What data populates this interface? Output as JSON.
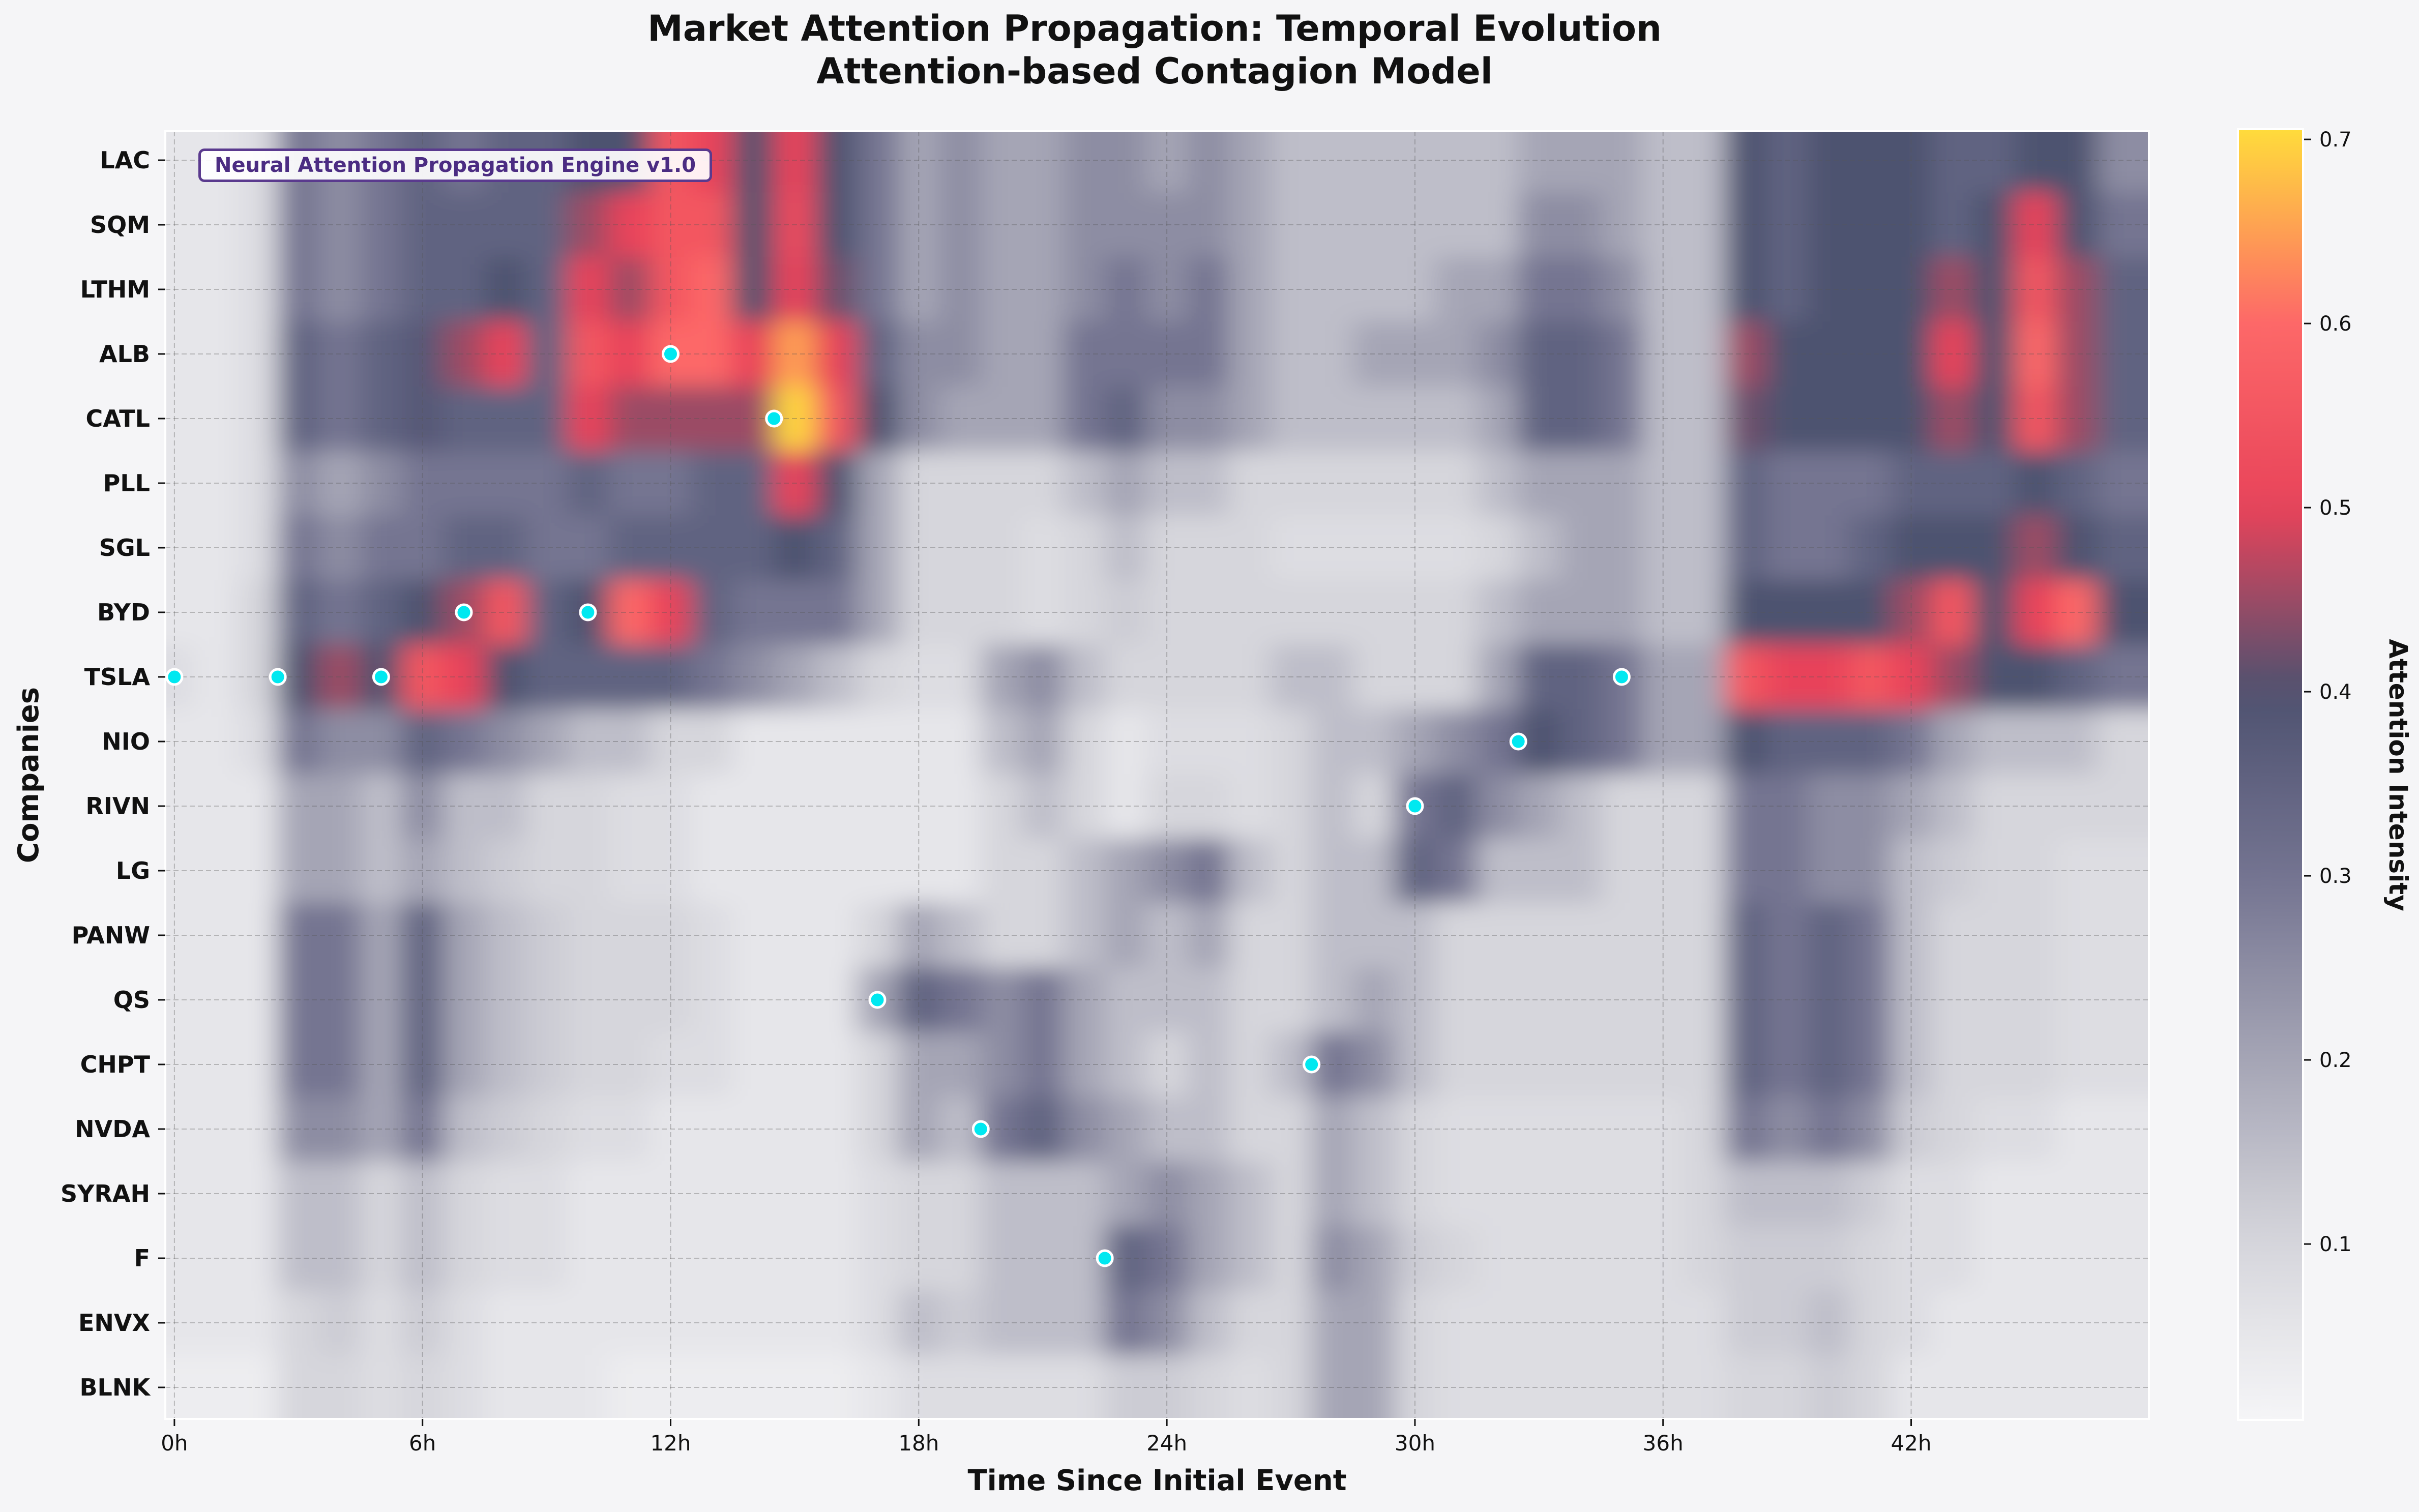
{
  "title_line1": "Market Attention Propagation: Temporal Evolution",
  "title_line2": "Attention-based Contagion Model",
  "annotation": "Neural Attention Propagation Engine v1.0",
  "chart_data": {
    "type": "heatmap",
    "xlabel": "Time Since Initial Event",
    "ylabel": "Companies",
    "colorbar_label": "Attention Intensity",
    "colorbar_ticks": [
      "0.1",
      "0.2",
      "0.3",
      "0.4",
      "0.5",
      "0.6",
      "0.7"
    ],
    "colorbar_range": [
      0.005,
      0.705
    ],
    "colormap": [
      "#f5f5f7",
      "#d6d6dc",
      "#a5a5b5",
      "#747491",
      "#4e5270",
      "#e8435a",
      "#fd6868",
      "#ffdb3c"
    ],
    "x_ticks": [
      "0h",
      "6h",
      "12h",
      "18h",
      "24h",
      "30h",
      "36h",
      "42h"
    ],
    "x_tick_values": [
      0,
      6,
      12,
      18,
      24,
      30,
      36,
      42
    ],
    "xlim": [
      -0.22,
      47.75
    ],
    "grid": true,
    "hours": [
      0,
      1,
      2,
      3,
      4,
      5,
      6,
      7,
      8,
      9,
      10,
      11,
      12,
      13,
      14,
      15,
      16,
      17,
      18,
      19,
      20,
      21,
      22,
      23,
      24,
      25,
      26,
      27,
      28,
      29,
      30,
      31,
      32,
      33,
      34,
      35,
      36,
      37,
      38,
      39,
      40,
      41,
      42,
      43,
      44,
      45,
      46,
      47
    ],
    "companies": [
      "LAC",
      "SQM",
      "LTHM",
      "ALB",
      "CATL",
      "PLL",
      "SGL",
      "BYD",
      "TSLA",
      "NIO",
      "RIVN",
      "LG",
      "PANW",
      "QS",
      "CHPT",
      "NVDA",
      "SYRAH",
      "F",
      "ENVX",
      "BLNK"
    ],
    "values": [
      [
        0.05,
        0.05,
        0.08,
        0.3,
        0.25,
        0.3,
        0.35,
        0.3,
        0.35,
        0.35,
        0.4,
        0.4,
        0.55,
        0.5,
        0.4,
        0.5,
        0.4,
        0.3,
        0.2,
        0.25,
        0.2,
        0.2,
        0.25,
        0.25,
        0.2,
        0.25,
        0.2,
        0.15,
        0.15,
        0.15,
        0.15,
        0.15,
        0.15,
        0.2,
        0.2,
        0.2,
        0.15,
        0.15,
        0.4,
        0.35,
        0.4,
        0.4,
        0.4,
        0.35,
        0.35,
        0.4,
        0.4,
        0.25
      ],
      [
        0.05,
        0.05,
        0.08,
        0.3,
        0.25,
        0.3,
        0.35,
        0.35,
        0.35,
        0.35,
        0.45,
        0.5,
        0.55,
        0.55,
        0.4,
        0.52,
        0.4,
        0.3,
        0.2,
        0.25,
        0.2,
        0.2,
        0.25,
        0.25,
        0.25,
        0.25,
        0.2,
        0.15,
        0.15,
        0.15,
        0.15,
        0.15,
        0.15,
        0.25,
        0.25,
        0.2,
        0.15,
        0.15,
        0.4,
        0.35,
        0.4,
        0.4,
        0.4,
        0.35,
        0.4,
        0.5,
        0.4,
        0.3
      ],
      [
        0.05,
        0.05,
        0.08,
        0.3,
        0.25,
        0.3,
        0.35,
        0.35,
        0.4,
        0.35,
        0.5,
        0.45,
        0.55,
        0.6,
        0.4,
        0.5,
        0.42,
        0.3,
        0.2,
        0.25,
        0.2,
        0.2,
        0.25,
        0.3,
        0.25,
        0.3,
        0.2,
        0.15,
        0.15,
        0.15,
        0.15,
        0.2,
        0.2,
        0.3,
        0.3,
        0.25,
        0.15,
        0.15,
        0.4,
        0.35,
        0.4,
        0.4,
        0.4,
        0.45,
        0.4,
        0.55,
        0.45,
        0.35
      ],
      [
        0.05,
        0.05,
        0.08,
        0.35,
        0.3,
        0.35,
        0.38,
        0.45,
        0.5,
        0.35,
        0.55,
        0.5,
        0.6,
        0.6,
        0.5,
        0.65,
        0.5,
        0.35,
        0.25,
        0.25,
        0.2,
        0.2,
        0.3,
        0.3,
        0.3,
        0.3,
        0.2,
        0.15,
        0.15,
        0.2,
        0.2,
        0.2,
        0.25,
        0.35,
        0.35,
        0.3,
        0.15,
        0.15,
        0.45,
        0.4,
        0.4,
        0.4,
        0.4,
        0.5,
        0.4,
        0.6,
        0.45,
        0.35
      ],
      [
        0.05,
        0.05,
        0.08,
        0.35,
        0.3,
        0.35,
        0.38,
        0.35,
        0.35,
        0.35,
        0.5,
        0.45,
        0.45,
        0.45,
        0.45,
        0.7,
        0.55,
        0.4,
        0.25,
        0.2,
        0.2,
        0.2,
        0.3,
        0.35,
        0.25,
        0.25,
        0.2,
        0.15,
        0.15,
        0.15,
        0.15,
        0.15,
        0.2,
        0.35,
        0.35,
        0.3,
        0.15,
        0.15,
        0.42,
        0.4,
        0.4,
        0.4,
        0.4,
        0.45,
        0.4,
        0.55,
        0.45,
        0.35
      ],
      [
        0.05,
        0.05,
        0.08,
        0.25,
        0.2,
        0.25,
        0.3,
        0.3,
        0.3,
        0.3,
        0.35,
        0.3,
        0.3,
        0.35,
        0.35,
        0.5,
        0.4,
        0.2,
        0.1,
        0.1,
        0.1,
        0.1,
        0.15,
        0.2,
        0.15,
        0.15,
        0.1,
        0.1,
        0.1,
        0.1,
        0.1,
        0.1,
        0.15,
        0.2,
        0.2,
        0.2,
        0.15,
        0.15,
        0.35,
        0.3,
        0.3,
        0.3,
        0.35,
        0.35,
        0.35,
        0.4,
        0.35,
        0.3
      ],
      [
        0.05,
        0.05,
        0.08,
        0.3,
        0.25,
        0.3,
        0.3,
        0.35,
        0.35,
        0.3,
        0.3,
        0.35,
        0.35,
        0.35,
        0.35,
        0.4,
        0.35,
        0.2,
        0.1,
        0.1,
        0.1,
        0.08,
        0.1,
        0.15,
        0.1,
        0.1,
        0.1,
        0.08,
        0.08,
        0.08,
        0.08,
        0.08,
        0.1,
        0.15,
        0.2,
        0.2,
        0.15,
        0.15,
        0.35,
        0.3,
        0.3,
        0.35,
        0.4,
        0.4,
        0.4,
        0.45,
        0.4,
        0.35
      ],
      [
        0.05,
        0.05,
        0.1,
        0.35,
        0.3,
        0.35,
        0.4,
        0.45,
        0.55,
        0.35,
        0.4,
        0.6,
        0.5,
        0.35,
        0.3,
        0.3,
        0.3,
        0.2,
        0.1,
        0.1,
        0.1,
        0.08,
        0.1,
        0.12,
        0.1,
        0.1,
        0.1,
        0.1,
        0.1,
        0.1,
        0.1,
        0.1,
        0.15,
        0.2,
        0.2,
        0.2,
        0.15,
        0.15,
        0.4,
        0.4,
        0.4,
        0.4,
        0.45,
        0.55,
        0.4,
        0.5,
        0.6,
        0.4
      ],
      [
        0.08,
        0.05,
        0.1,
        0.4,
        0.45,
        0.4,
        0.55,
        0.5,
        0.4,
        0.35,
        0.35,
        0.35,
        0.35,
        0.3,
        0.25,
        0.2,
        0.15,
        0.1,
        0.08,
        0.08,
        0.2,
        0.25,
        0.15,
        0.1,
        0.1,
        0.1,
        0.1,
        0.15,
        0.15,
        0.1,
        0.1,
        0.1,
        0.2,
        0.35,
        0.35,
        0.3,
        0.2,
        0.2,
        0.55,
        0.5,
        0.5,
        0.55,
        0.5,
        0.45,
        0.4,
        0.4,
        0.35,
        0.3
      ],
      [
        0.05,
        0.05,
        0.08,
        0.3,
        0.25,
        0.25,
        0.35,
        0.3,
        0.25,
        0.2,
        0.15,
        0.15,
        0.1,
        0.1,
        0.05,
        0.05,
        0.05,
        0.05,
        0.05,
        0.05,
        0.15,
        0.2,
        0.1,
        0.05,
        0.08,
        0.08,
        0.08,
        0.1,
        0.15,
        0.15,
        0.2,
        0.25,
        0.3,
        0.4,
        0.35,
        0.3,
        0.2,
        0.2,
        0.4,
        0.35,
        0.35,
        0.35,
        0.3,
        0.2,
        0.15,
        0.15,
        0.15,
        0.1
      ],
      [
        0.05,
        0.05,
        0.05,
        0.2,
        0.2,
        0.15,
        0.25,
        0.15,
        0.15,
        0.1,
        0.1,
        0.08,
        0.08,
        0.05,
        0.05,
        0.05,
        0.05,
        0.05,
        0.05,
        0.05,
        0.1,
        0.15,
        0.1,
        0.05,
        0.1,
        0.1,
        0.08,
        0.1,
        0.15,
        0.1,
        0.3,
        0.35,
        0.25,
        0.2,
        0.15,
        0.1,
        0.1,
        0.1,
        0.3,
        0.3,
        0.25,
        0.25,
        0.2,
        0.15,
        0.1,
        0.1,
        0.1,
        0.1
      ],
      [
        0.05,
        0.05,
        0.05,
        0.2,
        0.2,
        0.15,
        0.2,
        0.15,
        0.12,
        0.1,
        0.1,
        0.08,
        0.08,
        0.05,
        0.05,
        0.05,
        0.05,
        0.05,
        0.05,
        0.05,
        0.1,
        0.1,
        0.15,
        0.2,
        0.25,
        0.3,
        0.15,
        0.1,
        0.15,
        0.15,
        0.35,
        0.3,
        0.15,
        0.15,
        0.15,
        0.1,
        0.1,
        0.1,
        0.3,
        0.3,
        0.25,
        0.25,
        0.15,
        0.12,
        0.1,
        0.1,
        0.08,
        0.08
      ],
      [
        0.05,
        0.05,
        0.05,
        0.3,
        0.3,
        0.2,
        0.35,
        0.2,
        0.15,
        0.12,
        0.1,
        0.1,
        0.1,
        0.08,
        0.05,
        0.05,
        0.05,
        0.1,
        0.2,
        0.15,
        0.1,
        0.1,
        0.15,
        0.2,
        0.15,
        0.2,
        0.1,
        0.1,
        0.15,
        0.15,
        0.15,
        0.1,
        0.1,
        0.1,
        0.1,
        0.1,
        0.1,
        0.1,
        0.35,
        0.3,
        0.35,
        0.3,
        0.15,
        0.1,
        0.1,
        0.1,
        0.08,
        0.08
      ],
      [
        0.05,
        0.05,
        0.05,
        0.3,
        0.3,
        0.2,
        0.35,
        0.2,
        0.15,
        0.12,
        0.1,
        0.1,
        0.1,
        0.08,
        0.05,
        0.05,
        0.05,
        0.2,
        0.35,
        0.3,
        0.25,
        0.3,
        0.2,
        0.15,
        0.15,
        0.15,
        0.1,
        0.1,
        0.15,
        0.2,
        0.15,
        0.1,
        0.1,
        0.1,
        0.1,
        0.1,
        0.1,
        0.1,
        0.35,
        0.3,
        0.35,
        0.3,
        0.15,
        0.1,
        0.1,
        0.1,
        0.08,
        0.08
      ],
      [
        0.05,
        0.05,
        0.05,
        0.3,
        0.3,
        0.2,
        0.35,
        0.2,
        0.15,
        0.12,
        0.1,
        0.1,
        0.08,
        0.08,
        0.05,
        0.05,
        0.05,
        0.1,
        0.2,
        0.2,
        0.25,
        0.3,
        0.2,
        0.15,
        0.1,
        0.15,
        0.1,
        0.15,
        0.3,
        0.25,
        0.15,
        0.1,
        0.1,
        0.1,
        0.1,
        0.1,
        0.1,
        0.1,
        0.35,
        0.3,
        0.35,
        0.3,
        0.15,
        0.1,
        0.1,
        0.1,
        0.08,
        0.08
      ],
      [
        0.05,
        0.05,
        0.05,
        0.25,
        0.25,
        0.2,
        0.3,
        0.15,
        0.12,
        0.1,
        0.08,
        0.08,
        0.05,
        0.05,
        0.05,
        0.05,
        0.05,
        0.1,
        0.2,
        0.15,
        0.3,
        0.35,
        0.25,
        0.2,
        0.15,
        0.15,
        0.1,
        0.1,
        0.2,
        0.15,
        0.1,
        0.08,
        0.08,
        0.08,
        0.08,
        0.08,
        0.08,
        0.1,
        0.3,
        0.25,
        0.3,
        0.25,
        0.12,
        0.1,
        0.08,
        0.08,
        0.05,
        0.05
      ],
      [
        0.05,
        0.05,
        0.05,
        0.15,
        0.15,
        0.1,
        0.15,
        0.1,
        0.08,
        0.08,
        0.05,
        0.05,
        0.05,
        0.05,
        0.05,
        0.05,
        0.05,
        0.08,
        0.1,
        0.1,
        0.15,
        0.15,
        0.15,
        0.2,
        0.25,
        0.2,
        0.15,
        0.1,
        0.2,
        0.15,
        0.1,
        0.08,
        0.08,
        0.08,
        0.08,
        0.08,
        0.08,
        0.1,
        0.15,
        0.15,
        0.15,
        0.12,
        0.08,
        0.08,
        0.05,
        0.05,
        0.05,
        0.05
      ],
      [
        0.05,
        0.05,
        0.05,
        0.15,
        0.15,
        0.1,
        0.15,
        0.1,
        0.08,
        0.08,
        0.05,
        0.05,
        0.05,
        0.05,
        0.05,
        0.05,
        0.05,
        0.08,
        0.1,
        0.1,
        0.15,
        0.15,
        0.15,
        0.35,
        0.3,
        0.2,
        0.15,
        0.1,
        0.25,
        0.2,
        0.12,
        0.1,
        0.08,
        0.08,
        0.08,
        0.08,
        0.08,
        0.1,
        0.12,
        0.12,
        0.12,
        0.1,
        0.08,
        0.08,
        0.05,
        0.05,
        0.05,
        0.05
      ],
      [
        0.05,
        0.05,
        0.05,
        0.1,
        0.12,
        0.08,
        0.12,
        0.08,
        0.05,
        0.05,
        0.05,
        0.05,
        0.05,
        0.05,
        0.05,
        0.05,
        0.05,
        0.08,
        0.15,
        0.12,
        0.15,
        0.15,
        0.15,
        0.3,
        0.25,
        0.15,
        0.1,
        0.1,
        0.2,
        0.2,
        0.1,
        0.08,
        0.08,
        0.08,
        0.08,
        0.08,
        0.08,
        0.08,
        0.12,
        0.12,
        0.15,
        0.1,
        0.08,
        0.05,
        0.05,
        0.05,
        0.05,
        0.05
      ],
      [
        0.03,
        0.03,
        0.03,
        0.1,
        0.1,
        0.08,
        0.1,
        0.08,
        0.05,
        0.05,
        0.05,
        0.03,
        0.03,
        0.03,
        0.03,
        0.03,
        0.03,
        0.05,
        0.08,
        0.08,
        0.08,
        0.08,
        0.08,
        0.12,
        0.12,
        0.1,
        0.08,
        0.1,
        0.2,
        0.2,
        0.1,
        0.08,
        0.08,
        0.08,
        0.08,
        0.08,
        0.08,
        0.08,
        0.1,
        0.1,
        0.12,
        0.1,
        0.05,
        0.05,
        0.05,
        0.05,
        0.05,
        0.05
      ]
    ],
    "events": [
      {
        "time": 0,
        "company": "TSLA"
      },
      {
        "time": 2.5,
        "company": "TSLA"
      },
      {
        "time": 5,
        "company": "TSLA"
      },
      {
        "time": 7,
        "company": "BYD"
      },
      {
        "time": 10,
        "company": "BYD"
      },
      {
        "time": 12,
        "company": "ALB"
      },
      {
        "time": 14.5,
        "company": "CATL"
      },
      {
        "time": 17,
        "company": "QS"
      },
      {
        "time": 19.5,
        "company": "NVDA"
      },
      {
        "time": 22.5,
        "company": "F"
      },
      {
        "time": 27.5,
        "company": "CHPT"
      },
      {
        "time": 30,
        "company": "RIVN"
      },
      {
        "time": 32.5,
        "company": "NIO"
      },
      {
        "time": 35,
        "company": "TSLA"
      }
    ],
    "event_marker_color": "#00e8f0"
  }
}
